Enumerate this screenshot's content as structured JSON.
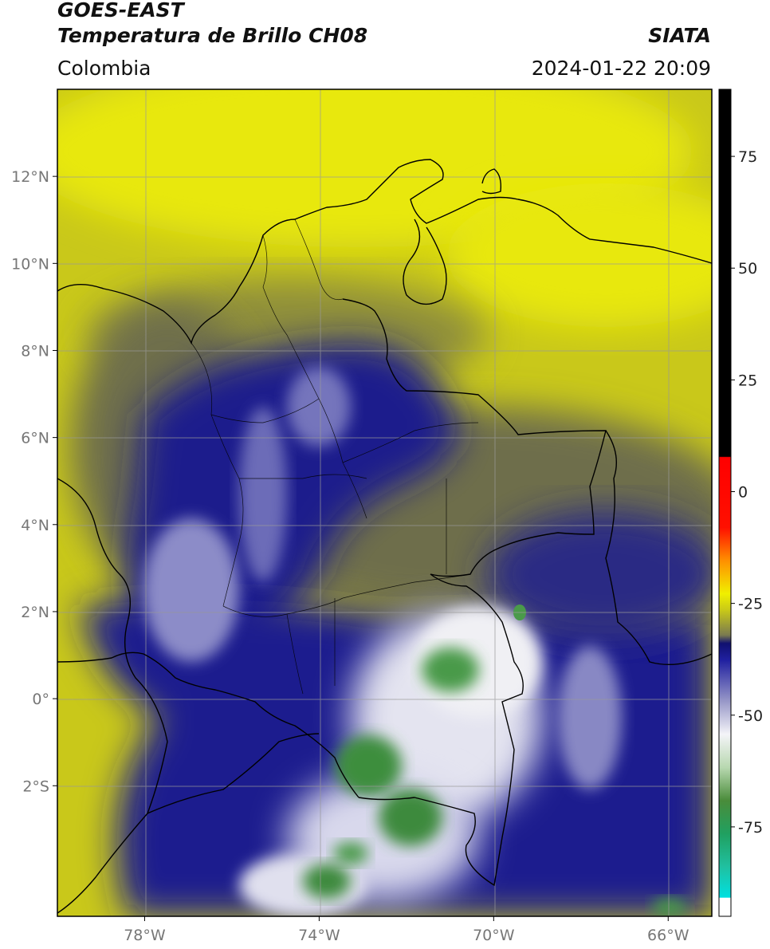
{
  "header": {
    "satellite": "GOES-EAST",
    "product": "Temperatura de Brillo CH08",
    "organization": "SIATA",
    "region": "Colombia",
    "datetime": "2024-01-22 20:09"
  },
  "map": {
    "lon_range": [
      -80,
      -65
    ],
    "lat_range": [
      -5,
      14
    ],
    "lat_ticks": [
      {
        "value": 12,
        "label": "12°N"
      },
      {
        "value": 10,
        "label": "10°N"
      },
      {
        "value": 8,
        "label": "8°N"
      },
      {
        "value": 6,
        "label": "6°N"
      },
      {
        "value": 4,
        "label": "4°N"
      },
      {
        "value": 2,
        "label": "2°N"
      },
      {
        "value": 0,
        "label": "0°"
      },
      {
        "value": -2,
        "label": "2°S"
      }
    ],
    "lon_ticks": [
      {
        "value": -78,
        "label": "78°W"
      },
      {
        "value": -74,
        "label": "74°W"
      },
      {
        "value": -70,
        "label": "70°W"
      },
      {
        "value": -66,
        "label": "66°W"
      }
    ],
    "colors": {
      "warm": "#c9c81a",
      "bright": "#e6e60c",
      "mid": "#6f6f4a",
      "cold": "#1a1a8a",
      "very_cold": "#e8e8f0",
      "coldest": "#3c8c3c"
    }
  },
  "colorbar": {
    "range": [
      -95,
      90
    ],
    "ticks": [
      {
        "value": 75,
        "label": "75"
      },
      {
        "value": 50,
        "label": "50"
      },
      {
        "value": 25,
        "label": "25"
      },
      {
        "value": 0,
        "label": "0"
      },
      {
        "value": -25,
        "label": "-25"
      },
      {
        "value": -50,
        "label": "-50"
      },
      {
        "value": -75,
        "label": "-75"
      }
    ]
  }
}
